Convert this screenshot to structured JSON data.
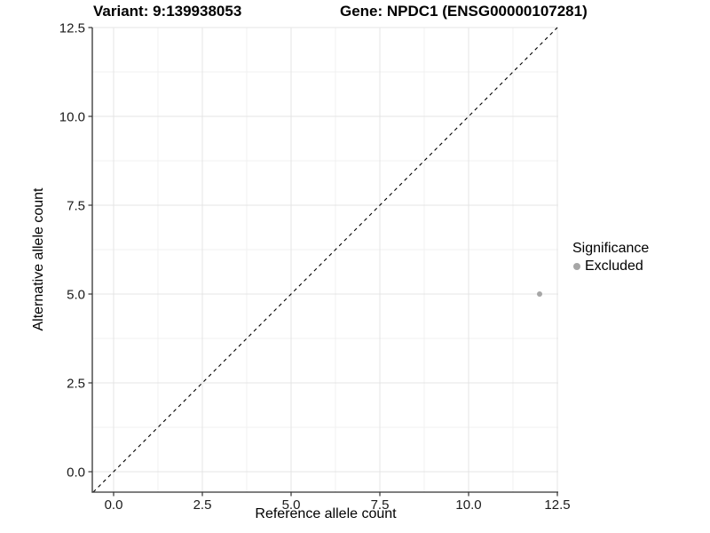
{
  "chart_data": {
    "type": "scatter",
    "titles": [
      "Variant: 9:139938053",
      "Gene: NPDC1 (ENSG00000107281)"
    ],
    "xlabel": "Reference allele count",
    "ylabel": "Alternative allele count",
    "xlim": [
      -0.6,
      12.52
    ],
    "ylim": [
      -0.58,
      12.5
    ],
    "x_ticks": [
      0,
      2.5,
      5,
      7.5,
      10,
      12.5
    ],
    "x_tick_labels": [
      "0.0",
      "2.5",
      "5.0",
      "7.5",
      "10.0",
      "12.5"
    ],
    "y_ticks": [
      0,
      2.5,
      5,
      7.5,
      10,
      12.5
    ],
    "y_tick_labels": [
      "0.0",
      "2.5",
      "5.0",
      "7.5",
      "10.0",
      "12.5"
    ],
    "grid": "major+minor",
    "reference_line": {
      "slope": 1,
      "intercept": 0,
      "linetype": "dashed",
      "color": "#000000"
    },
    "series": [
      {
        "name": "Excluded",
        "color": "#a6a6a6",
        "points": [
          {
            "x": 12,
            "y": 5
          }
        ]
      }
    ],
    "legend": {
      "title": "Significance",
      "position": "right",
      "items": [
        {
          "label": "Excluded",
          "color": "#a6a6a6"
        }
      ]
    },
    "colors": {
      "grid_major": "#e4e4e4",
      "grid_minor": "#f1f1f1",
      "axis_line": "#333333",
      "tick_text": "#1a1a1a"
    }
  }
}
